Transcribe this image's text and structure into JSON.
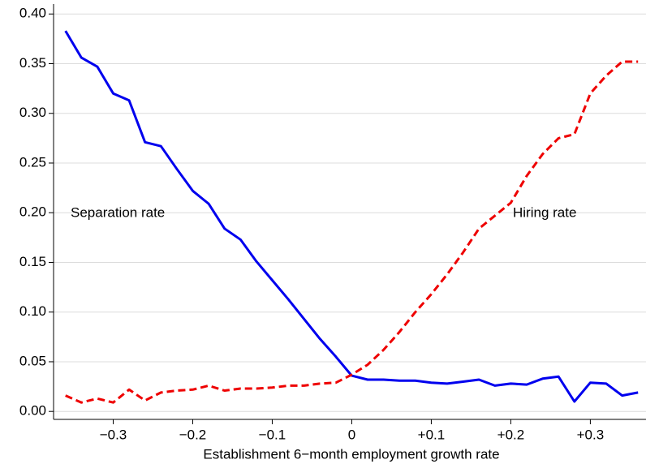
{
  "chart_data": {
    "type": "line",
    "x_label": "Establishment 6−month employment growth rate",
    "x": [
      -0.36,
      -0.34,
      -0.32,
      -0.3,
      -0.28,
      -0.26,
      -0.24,
      -0.22,
      -0.2,
      -0.18,
      -0.16,
      -0.14,
      -0.12,
      -0.1,
      -0.08,
      -0.06,
      -0.04,
      -0.02,
      0.0,
      0.02,
      0.04,
      0.06,
      0.08,
      0.1,
      0.12,
      0.14,
      0.16,
      0.18,
      0.2,
      0.22,
      0.24,
      0.26,
      0.28,
      0.3,
      0.32,
      0.34,
      0.36
    ],
    "series": [
      {
        "name": "Separation rate",
        "color": "#0000ee",
        "dash": false,
        "values": [
          0.383,
          0.356,
          0.347,
          0.32,
          0.313,
          0.271,
          0.267,
          0.244,
          0.222,
          0.209,
          0.184,
          0.173,
          0.151,
          0.132,
          0.113,
          0.093,
          0.073,
          0.055,
          0.036,
          0.032,
          0.032,
          0.031,
          0.031,
          0.029,
          0.028,
          0.03,
          0.032,
          0.026,
          0.028,
          0.027,
          0.033,
          0.035,
          0.01,
          0.029,
          0.028,
          0.016,
          0.019
        ]
      },
      {
        "name": "Hiring rate",
        "color": "#ee0000",
        "dash": true,
        "values": [
          0.016,
          0.009,
          0.013,
          0.009,
          0.022,
          0.011,
          0.019,
          0.021,
          0.022,
          0.026,
          0.021,
          0.023,
          0.023,
          0.024,
          0.026,
          0.026,
          0.028,
          0.029,
          0.037,
          0.047,
          0.062,
          0.08,
          0.1,
          0.118,
          0.138,
          0.16,
          0.184,
          0.197,
          0.21,
          0.237,
          0.259,
          0.275,
          0.279,
          0.32,
          0.338,
          0.352,
          0.352
        ]
      }
    ],
    "xlim": [
      -0.375,
      0.37
    ],
    "ylim": [
      -0.008,
      0.41
    ],
    "xticks": [
      {
        "value": -0.3,
        "label": "−0.3"
      },
      {
        "value": -0.2,
        "label": "−0.2"
      },
      {
        "value": -0.1,
        "label": "−0.1"
      },
      0,
      {
        "value": 0.1,
        "label": "+0.1"
      },
      {
        "value": 0.2,
        "label": "+0.2"
      },
      {
        "value": 0.3,
        "label": "+0.3"
      }
    ],
    "yticks": [
      {
        "value": 0,
        "label": "0.00"
      },
      {
        "value": 0.05,
        "label": "0.05"
      },
      {
        "value": 0.1,
        "label": "0.10"
      },
      {
        "value": 0.15,
        "label": "0.15"
      },
      {
        "value": 0.2,
        "label": "0.20"
      },
      {
        "value": 0.25,
        "label": "0.25"
      },
      {
        "value": 0.3,
        "label": "0.30"
      },
      {
        "value": 0.35,
        "label": "0.35"
      },
      {
        "value": 0.4,
        "label": "0.40"
      }
    ],
    "grid": true
  }
}
